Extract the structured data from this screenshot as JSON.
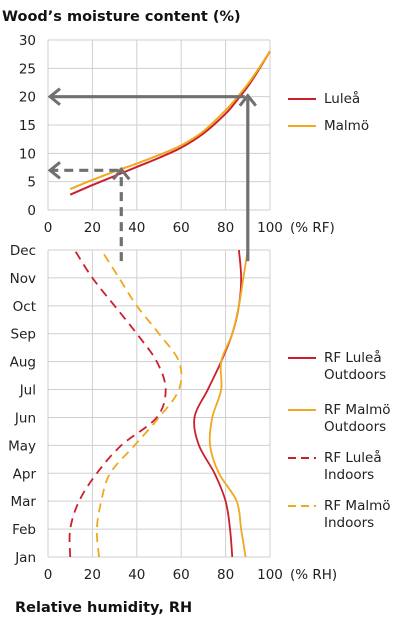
{
  "chart_data": [
    {
      "type": "line",
      "title": "Wood’s moisture content (%)",
      "xlabel": "",
      "x_unit_label": "(% RF)",
      "ylabel": "",
      "xlim": [
        0,
        100
      ],
      "ylim": [
        0,
        30
      ],
      "x_ticks": [
        "0",
        "20",
        "40",
        "60",
        "80",
        "100"
      ],
      "y_ticks": [
        "0",
        "5",
        "10",
        "15",
        "20",
        "25",
        "30"
      ],
      "grid": true,
      "legend_position": "right",
      "series": [
        {
          "name": "Luleå",
          "color": "#cc1f2d",
          "x": [
            10,
            20,
            30,
            40,
            50,
            60,
            70,
            80,
            85,
            90,
            95,
            100
          ],
          "y": [
            2.7,
            4.4,
            6.0,
            7.6,
            9.2,
            11.0,
            13.5,
            17.0,
            19.3,
            21.8,
            24.8,
            28.0
          ]
        },
        {
          "name": "Malmö",
          "color": "#f0a81c",
          "x": [
            10,
            20,
            30,
            40,
            50,
            60,
            70,
            80,
            85,
            90,
            95,
            100
          ],
          "y": [
            3.7,
            5.3,
            6.8,
            8.2,
            9.7,
            11.4,
            13.9,
            17.6,
            19.8,
            22.2,
            25.0,
            28.0
          ]
        }
      ],
      "annotations": [
        {
          "type": "arrow",
          "style": "solid",
          "color": "#707070",
          "from_rh": 90,
          "to_moisture": 20
        },
        {
          "type": "arrow",
          "style": "dashed",
          "color": "#707070",
          "from_rh": 33,
          "to_moisture": 7
        }
      ]
    },
    {
      "type": "line",
      "title": "",
      "xlabel": "Relative humidity, RH",
      "x_unit_label": "(% RH)",
      "ylabel": "",
      "xlim": [
        0,
        100
      ],
      "x_ticks": [
        "0",
        "20",
        "40",
        "60",
        "80",
        "100"
      ],
      "categories": [
        "Jan",
        "Feb",
        "Mar",
        "Apr",
        "May",
        "Jun",
        "Jul",
        "Aug",
        "Sep",
        "Oct",
        "Nov",
        "Dec"
      ],
      "grid": true,
      "legend_position": "right",
      "series": [
        {
          "name": "RF Luleå Outdoors",
          "color": "#cc1f2d",
          "dash": "solid",
          "values": [
            83,
            82,
            80,
            75,
            68,
            66,
            72,
            78,
            83,
            86,
            87,
            86
          ]
        },
        {
          "name": "RF Malmö Outdoors",
          "color": "#f0a81c",
          "dash": "solid",
          "values": [
            89,
            87,
            85,
            77,
            73,
            74,
            78,
            78,
            83,
            86,
            88,
            90
          ]
        },
        {
          "name": "RF Luleå Indoors",
          "color": "#cc1f2d",
          "dash": "dashed",
          "values": [
            10,
            10,
            14,
            22,
            33,
            49,
            53,
            49,
            40,
            30,
            20,
            12
          ]
        },
        {
          "name": "RF Malmö Indoors",
          "color": "#f0a81c",
          "dash": "dashed",
          "values": [
            23,
            22,
            24,
            28,
            39,
            50,
            59,
            59,
            50,
            40,
            32,
            24
          ]
        }
      ]
    }
  ]
}
